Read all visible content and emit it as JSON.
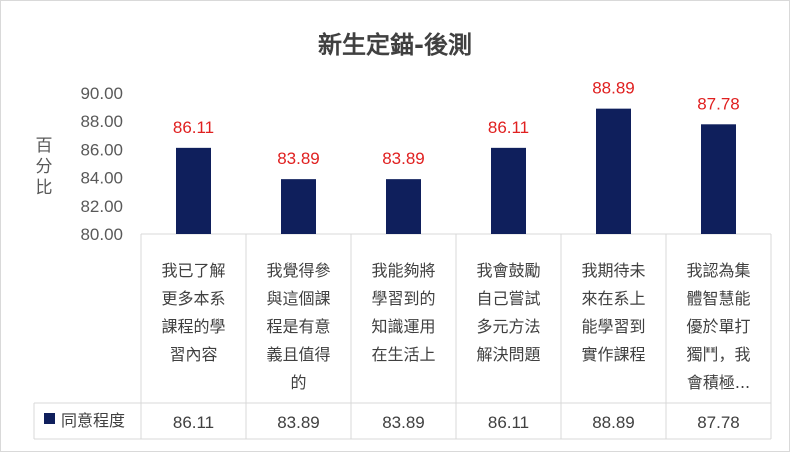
{
  "chart_data": {
    "type": "bar",
    "title": "新生定錨-後測",
    "ylabel": "百分比",
    "xlabel": "",
    "ylim": [
      80,
      90
    ],
    "yticks": [
      "80.00",
      "82.00",
      "84.00",
      "86.00",
      "88.00",
      "90.00"
    ],
    "categories": [
      [
        "我已了解",
        "更多本系",
        "課程的學",
        "習內容"
      ],
      [
        "我覺得參",
        "與這個課",
        "程是有意",
        "義且值得",
        "的"
      ],
      [
        "我能夠將",
        "學習到的",
        "知識運用",
        "在生活上"
      ],
      [
        "我會鼓勵",
        "自己嘗試",
        "多元方法",
        "解決問題"
      ],
      [
        "我期待未",
        "來在系上",
        "能學習到",
        "實作課程"
      ],
      [
        "我認為集",
        "體智慧能",
        "優於單打",
        "獨鬥，我",
        "會積極..."
      ]
    ],
    "series": [
      {
        "name": "同意程度",
        "values": [
          86.11,
          83.89,
          83.89,
          86.11,
          88.89,
          87.78
        ],
        "labels": [
          "86.11",
          "83.89",
          "83.89",
          "86.11",
          "88.89",
          "87.78"
        ],
        "color": "#0f1f5c"
      }
    ],
    "data_label_color": "#e02020",
    "grid": false,
    "legend": "data-table"
  }
}
